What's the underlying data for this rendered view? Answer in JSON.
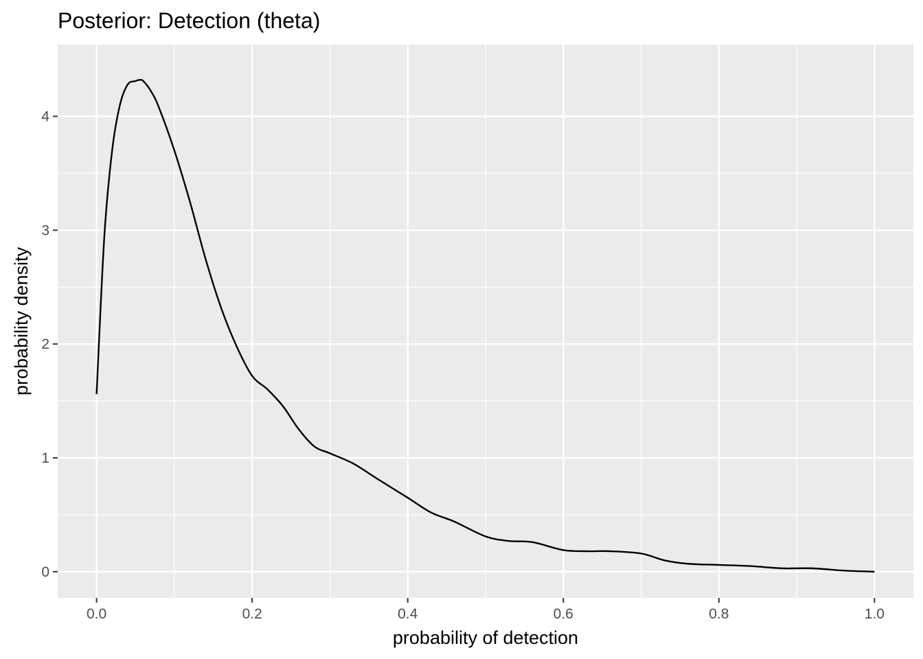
{
  "chart_data": {
    "type": "line",
    "title": "Posterior: Detection (theta)",
    "xlabel": "probability of detection",
    "ylabel": "probability density",
    "xlim": [
      -0.05,
      1.05
    ],
    "ylim": [
      -0.23,
      4.63
    ],
    "x_ticks": [
      0.0,
      0.2,
      0.4,
      0.6,
      0.8,
      1.0
    ],
    "x_tick_labels": [
      "0.0",
      "0.2",
      "0.4",
      "0.6",
      "0.8",
      "1.0"
    ],
    "y_ticks": [
      0,
      1,
      2,
      3,
      4
    ],
    "y_tick_labels": [
      "0",
      "1",
      "2",
      "3",
      "4"
    ],
    "grid": true,
    "panel_background": "#ebebeb",
    "grid_color": "#ffffff",
    "line_color": "#000000",
    "series": [
      {
        "x": [
          0.0,
          0.01,
          0.02,
          0.03,
          0.04,
          0.05,
          0.055,
          0.06,
          0.07,
          0.08,
          0.1,
          0.12,
          0.14,
          0.16,
          0.18,
          0.2,
          0.22,
          0.24,
          0.26,
          0.28,
          0.3,
          0.33,
          0.36,
          0.4,
          0.43,
          0.46,
          0.5,
          0.53,
          0.56,
          0.6,
          0.63,
          0.66,
          0.7,
          0.73,
          0.76,
          0.8,
          0.84,
          0.88,
          0.92,
          0.96,
          1.0
        ],
        "y": [
          1.56,
          2.95,
          3.7,
          4.1,
          4.28,
          4.31,
          4.32,
          4.31,
          4.22,
          4.08,
          3.7,
          3.25,
          2.75,
          2.32,
          1.98,
          1.72,
          1.6,
          1.45,
          1.25,
          1.1,
          1.04,
          0.95,
          0.82,
          0.65,
          0.52,
          0.44,
          0.31,
          0.27,
          0.26,
          0.19,
          0.18,
          0.18,
          0.16,
          0.1,
          0.07,
          0.06,
          0.05,
          0.03,
          0.03,
          0.01,
          0.0
        ]
      }
    ]
  }
}
